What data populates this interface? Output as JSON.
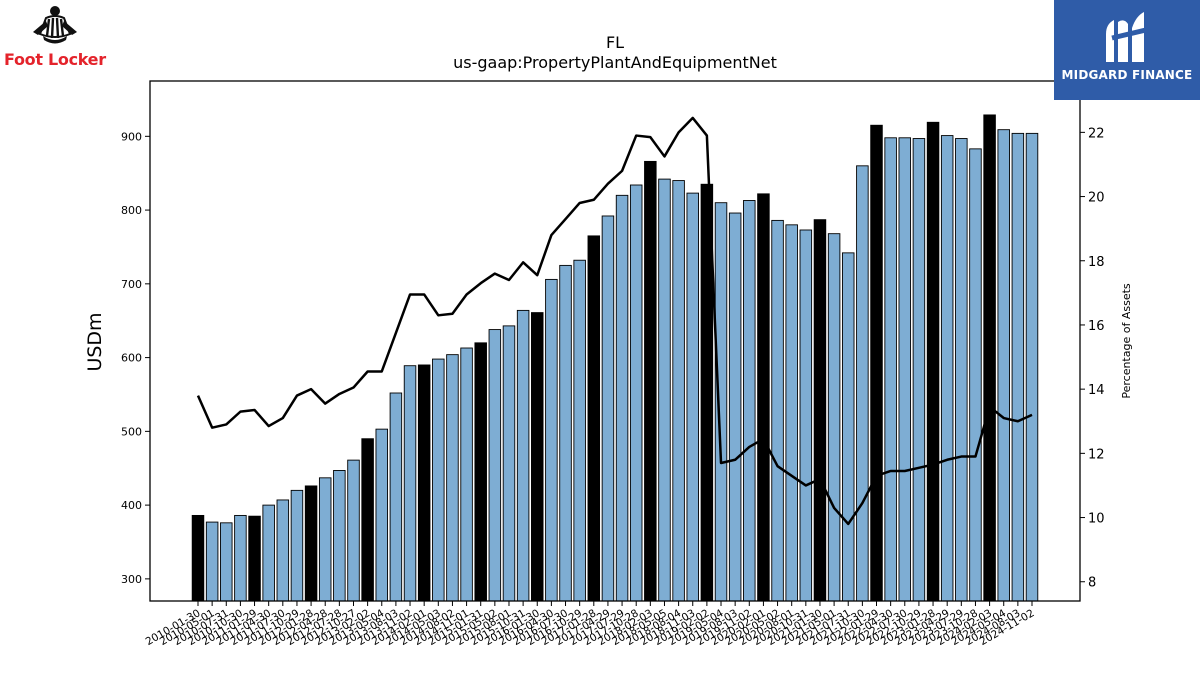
{
  "logos": {
    "left_name": "Foot Locker",
    "right_name": "MIDGARD FINANCE"
  },
  "chart_data": {
    "type": "bar",
    "title": "FL",
    "subtitle": "us-gaap:PropertyPlantAndEquipmentNet",
    "ylabel": "USDm",
    "y2label": "Percentage of Assets",
    "ylim": [
      270,
      975
    ],
    "y2lim": [
      7.4,
      23.6
    ],
    "yticks": [
      300,
      400,
      500,
      600,
      700,
      800,
      900
    ],
    "y2ticks": [
      8,
      10,
      12,
      14,
      16,
      18,
      20,
      22
    ],
    "grid": false,
    "legend": "none",
    "bar_color": "#7eadd3",
    "highlight_color": "#000000",
    "line_color": "#000000",
    "categories": [
      "2010-01-30",
      "2010-05-01",
      "2010-07-31",
      "2010-10-30",
      "2011-01-29",
      "2011-04-30",
      "2011-07-30",
      "2011-10-29",
      "2012-01-28",
      "2012-04-28",
      "2012-07-28",
      "2012-10-27",
      "2013-02-02",
      "2013-05-04",
      "2013-08-03",
      "2013-11-02",
      "2014-02-01",
      "2014-05-03",
      "2014-08-02",
      "2014-11-01",
      "2015-01-31",
      "2015-05-02",
      "2015-08-01",
      "2015-10-31",
      "2016-01-30",
      "2016-04-30",
      "2016-07-30",
      "2016-10-29",
      "2017-01-28",
      "2017-04-29",
      "2017-07-29",
      "2017-10-28",
      "2018-02-03",
      "2018-05-05",
      "2018-08-04",
      "2018-11-03",
      "2019-02-02",
      "2019-05-04",
      "2019-08-03",
      "2019-11-02",
      "2020-02-01",
      "2020-05-02",
      "2020-08-01",
      "2020-10-31",
      "2021-01-30",
      "2021-05-01",
      "2021-07-31",
      "2021-10-30",
      "2022-01-29",
      "2022-04-30",
      "2022-07-30",
      "2022-10-29",
      "2023-01-28",
      "2023-04-29",
      "2023-07-29",
      "2023-10-28",
      "2024-02-03",
      "2024-05-04",
      "2024-08-03",
      "2024-11-02"
    ],
    "visible_tick_labels": [
      "2010-01-30",
      "2010-05-01",
      "2010-07-31",
      "2010-10-30",
      "2011-01-29",
      "2011-04-30",
      "2011-07-30",
      "2011-10-29",
      "2012-01-28",
      "2012-04-28",
      "2012-07-28",
      "2012-10-27",
      "2013-02-02",
      "2013-05-04",
      "2013-08-03",
      "2013-11-02",
      "2014-02-01",
      "2014-05-03",
      "2014-08-02",
      "2014-11-01",
      "2015-01-31",
      "2015-05-02",
      "2015-08-01",
      "2015-10-31",
      "2016-01-30",
      "2016-04-30",
      "2016-07-30",
      "2016-10-29",
      "2017-01-28",
      "2017-04-29",
      "2017-07-29",
      "2017-10-28",
      "2018-02-03",
      "2018-05-05",
      "2018-08-04",
      "2018-11-03",
      "2019-02-02",
      "2019-05-04",
      "2019-08-03",
      "2019-11-02",
      "2020-02-01",
      "2020-05-02",
      "2020-08-01",
      "2020-10-31",
      "2021-01-30",
      "2021-05-01",
      "2021-07-31",
      "2021-10-30",
      "2022-01-29",
      "2022-04-30",
      "2022-07-30",
      "2022-10-29",
      "2023-01-28",
      "2023-04-29",
      "2023-07-29",
      "2023-10-28",
      "2024-02-03",
      "2024-05-04",
      "2024-08-03",
      "2024-11-02"
    ],
    "series": [
      {
        "type": "bar",
        "axis": "left",
        "values": [
          386,
          377,
          376,
          386,
          385,
          400,
          407,
          420,
          426,
          437,
          447,
          461,
          490,
          503,
          552,
          589,
          590,
          598,
          604,
          613,
          620,
          638,
          643,
          664,
          661,
          706,
          725,
          732,
          765,
          792,
          820,
          834,
          866,
          842,
          840,
          823,
          835,
          810,
          796,
          813,
          822,
          786,
          780,
          773,
          787,
          768,
          742,
          860,
          915,
          898,
          898,
          897,
          919,
          901,
          897,
          883,
          929,
          909,
          904,
          904
        ],
        "highlight": [
          true,
          false,
          false,
          false,
          true,
          false,
          false,
          false,
          true,
          false,
          false,
          false,
          true,
          false,
          false,
          false,
          true,
          false,
          false,
          false,
          true,
          false,
          false,
          false,
          true,
          false,
          false,
          false,
          true,
          false,
          false,
          false,
          true,
          false,
          false,
          false,
          true,
          false,
          false,
          false,
          true,
          false,
          false,
          false,
          true,
          false,
          false,
          false,
          true,
          false,
          false,
          false,
          true,
          false,
          false,
          false,
          true,
          false,
          false,
          false
        ]
      },
      {
        "type": "line",
        "axis": "right",
        "values": [
          13.8,
          12.8,
          12.9,
          13.3,
          13.35,
          12.85,
          13.1,
          13.8,
          14.0,
          13.55,
          13.85,
          14.05,
          14.55,
          14.55,
          15.75,
          16.95,
          16.95,
          16.3,
          16.35,
          16.95,
          17.3,
          17.6,
          17.4,
          17.95,
          17.55,
          18.8,
          19.3,
          19.8,
          19.9,
          20.4,
          20.8,
          21.9,
          21.85,
          21.25,
          22.0,
          22.45,
          21.9,
          11.7,
          11.8,
          12.2,
          12.45,
          11.6,
          11.3,
          11.0,
          11.2,
          10.3,
          9.8,
          10.45,
          11.3,
          11.45,
          11.45,
          11.55,
          11.65,
          11.8,
          11.9,
          11.9,
          13.45,
          13.1,
          13.0,
          13.2
        ]
      }
    ]
  }
}
